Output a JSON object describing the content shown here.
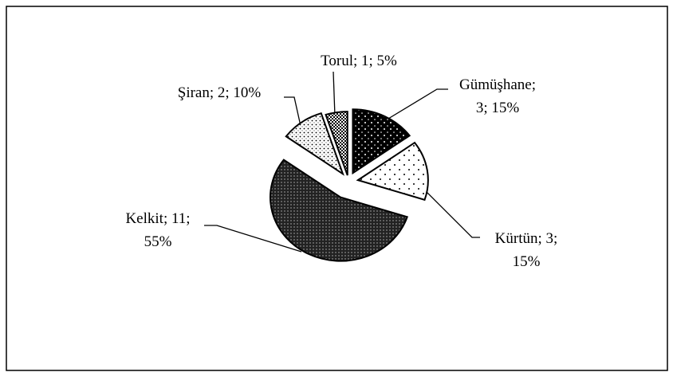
{
  "chart_data": {
    "type": "pie",
    "categories": [
      "Gümüşhane",
      "Kürtün",
      "Kelkit",
      "Şiran",
      "Torul"
    ],
    "values": [
      3,
      3,
      11,
      2,
      1
    ],
    "labels": [
      [
        "Gümüşhane;",
        "3; 15%"
      ],
      [
        "Kürtün; 3;",
        "15%"
      ],
      [
        "Kelkit; 11;",
        "55%"
      ],
      [
        "Şiran; 2; 10%"
      ],
      [
        "Torul; 1; 5%"
      ]
    ]
  }
}
